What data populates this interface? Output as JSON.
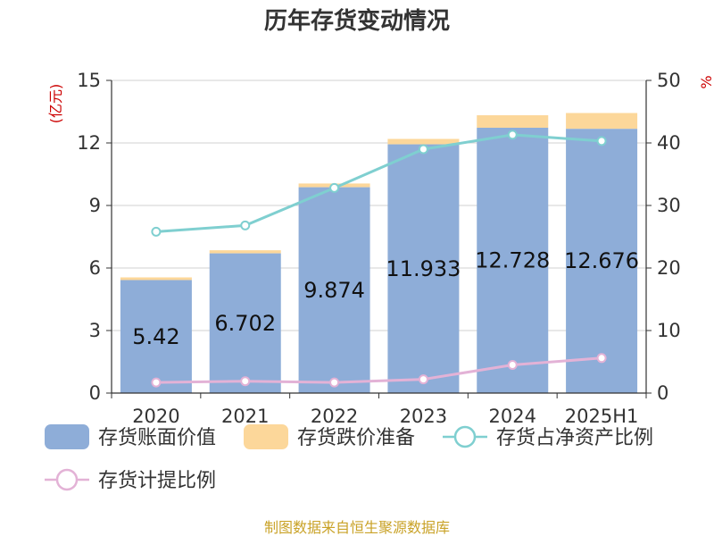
{
  "chart_data": {
    "type": "bar",
    "title": "历年存货变动情况",
    "categories": [
      "2020",
      "2021",
      "2022",
      "2023",
      "2024",
      "2025H1"
    ],
    "ylabel_left": "(亿元)",
    "ylabel_right": "%",
    "ylim_left": [
      0,
      15
    ],
    "yticks_left": [
      "0",
      "3",
      "6",
      "9",
      "12",
      "15"
    ],
    "ylim_right": [
      0,
      50
    ],
    "yticks_right": [
      "0",
      "10",
      "20",
      "30",
      "40",
      "50"
    ],
    "grid": true,
    "legend_position": "bottom",
    "series": [
      {
        "name": "存货账面价值",
        "type": "bar",
        "axis": "left",
        "color": "#8eadd8",
        "values": [
          5.42,
          6.702,
          9.874,
          11.933,
          12.728,
          12.676
        ],
        "labels": [
          "5.42",
          "6.702",
          "9.874",
          "11.933",
          "12.728",
          "12.676"
        ]
      },
      {
        "name": "存货跌价准备",
        "type": "bar",
        "stacked": true,
        "axis": "left",
        "color": "#fcd79a",
        "values": [
          0.13,
          0.15,
          0.18,
          0.26,
          0.6,
          0.76
        ]
      },
      {
        "name": "存货占净资产比例",
        "type": "line",
        "axis": "right",
        "color": "#7fcfd0",
        "values": [
          25.8,
          26.8,
          32.8,
          39.0,
          41.3,
          40.3
        ]
      },
      {
        "name": "存货计提比例",
        "type": "line",
        "axis": "right",
        "color": "#e3b2d6",
        "values": [
          1.7,
          1.9,
          1.7,
          2.2,
          4.5,
          5.6
        ]
      }
    ]
  },
  "source": "制图数据来自恒生聚源数据库"
}
